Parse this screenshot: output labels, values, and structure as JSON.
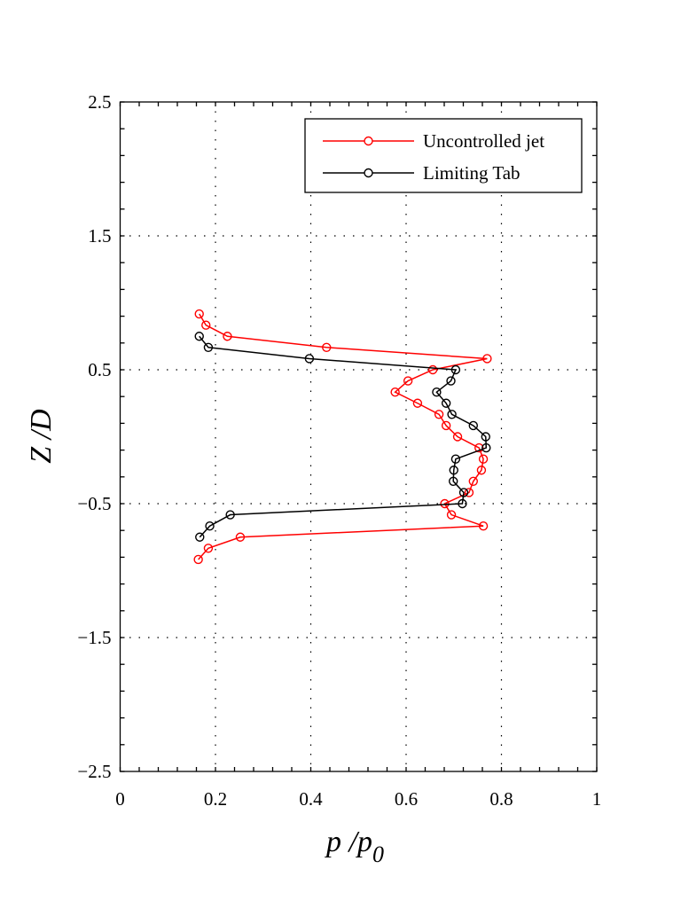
{
  "chart_data": {
    "type": "line",
    "title": "",
    "xlabel": "p /p",
    "xlabel_sub": "0",
    "ylabel": "Z /D",
    "xlim": [
      0,
      1
    ],
    "ylim": [
      -2.5,
      2.5
    ],
    "xticks": [
      0,
      0.2,
      0.4,
      0.6,
      0.8,
      1
    ],
    "xtick_labels": [
      "0",
      "0.2",
      "0.4",
      "0.6",
      "0.8",
      "1"
    ],
    "yticks": [
      2.5,
      1.5,
      0.5,
      -0.5,
      -1.5,
      -2.5
    ],
    "ytick_labels": [
      "2.5",
      "1.5",
      "0.5",
      "−0.5",
      "−1.5",
      "−2.5"
    ],
    "grid": true,
    "legend_position": "top-right",
    "series": [
      {
        "name": "Uncontrolled jet",
        "color": "#ff0000",
        "marker": "circle",
        "x": [
          0.166,
          0.18,
          0.225,
          0.433,
          0.77,
          0.656,
          0.604,
          0.577,
          0.624,
          0.669,
          0.684,
          0.708,
          0.753,
          0.762,
          0.758,
          0.741,
          0.732,
          0.681,
          0.695,
          0.762,
          0.252,
          0.185,
          0.164
        ],
        "y": [
          0.917,
          0.833,
          0.75,
          0.667,
          0.583,
          0.5,
          0.417,
          0.333,
          0.25,
          0.167,
          0.083,
          0,
          -0.083,
          -0.167,
          -0.25,
          -0.333,
          -0.417,
          -0.5,
          -0.583,
          -0.667,
          -0.75,
          -0.833,
          -0.917
        ]
      },
      {
        "name": "Limiting Tab",
        "color": "#000000",
        "marker": "circle",
        "x": [
          0.166,
          0.185,
          0.397,
          0.704,
          0.694,
          0.664,
          0.684,
          0.696,
          0.741,
          0.767,
          0.768,
          0.704,
          0.7,
          0.699,
          0.721,
          0.718,
          0.231,
          0.188,
          0.167
        ],
        "y": [
          0.75,
          0.667,
          0.583,
          0.5,
          0.417,
          0.333,
          0.25,
          0.167,
          0.083,
          0,
          -0.083,
          -0.167,
          -0.25,
          -0.333,
          -0.417,
          -0.5,
          -0.583,
          -0.667,
          -0.75
        ]
      }
    ]
  }
}
